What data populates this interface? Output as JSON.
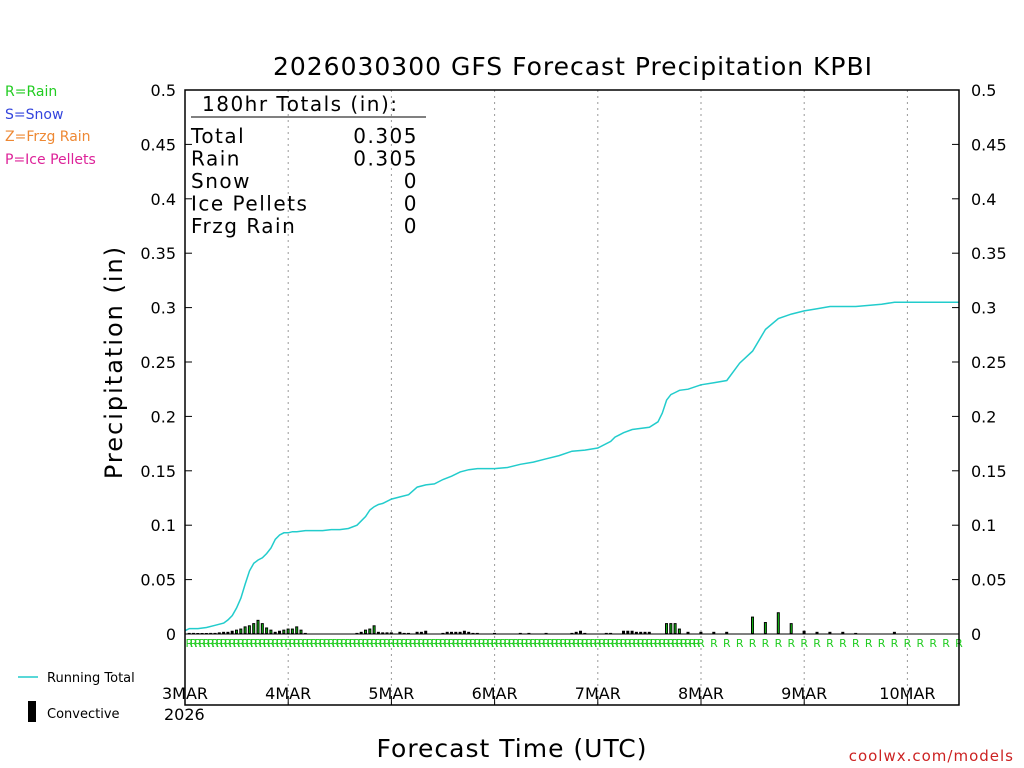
{
  "chart_data": {
    "type": "line",
    "title": "2026030300 GFS Forecast Precipitation KPBI",
    "xlabel": "Forecast Time (UTC)",
    "ylabel": "Precipitation (in)",
    "xlim": [
      0,
      180
    ],
    "ylim": [
      0,
      0.5
    ],
    "y_ticks": [
      0,
      0.05,
      0.1,
      0.15,
      0.2,
      0.25,
      0.3,
      0.35,
      0.4,
      0.45,
      0.5
    ],
    "y_tick_labels": [
      "0",
      "0.05",
      "0.1",
      "0.15",
      "0.2",
      "0.25",
      "0.3",
      "0.35",
      "0.4",
      "0.45",
      "0.5"
    ],
    "x_ticks": [
      0,
      24,
      48,
      72,
      96,
      120,
      144,
      168
    ],
    "x_tick_labels": [
      "3MAR",
      "4MAR",
      "5MAR",
      "6MAR",
      "7MAR",
      "8MAR",
      "9MAR",
      "10MAR"
    ],
    "x_year_label": "2026",
    "grid": "vertical dotted at day boundaries",
    "type_legend": [
      {
        "label": "R=Rain",
        "color": "#22cc22"
      },
      {
        "label": "S=Snow",
        "color": "#3344dd"
      },
      {
        "label": "Z=Frzg Rain",
        "color": "#ee8833"
      },
      {
        "label": "P=Ice Pellets",
        "color": "#dd2299"
      }
    ],
    "series_legend": [
      {
        "label": "Running Total",
        "color": "#22cccc",
        "kind": "line"
      },
      {
        "label": "Convective",
        "color": "#000000",
        "kind": "bar"
      }
    ],
    "totals_box": {
      "heading": "180hr Totals (in):",
      "rows": [
        {
          "label": "Total",
          "value": "0.305"
        },
        {
          "label": "Rain",
          "value": "0.305"
        },
        {
          "label": "Snow",
          "value": "0"
        },
        {
          "label": "Ice Pellets",
          "value": "0"
        },
        {
          "label": "Frzg Rain",
          "value": "0"
        }
      ]
    },
    "running_total": {
      "name": "Running Total",
      "color": "#22cccc",
      "x": [
        0,
        1,
        3,
        5,
        7,
        9,
        10,
        11,
        12,
        13,
        14,
        15,
        16,
        17,
        18,
        19,
        20,
        21,
        22,
        23,
        24,
        25,
        26,
        28,
        30,
        32,
        34,
        36,
        38,
        40,
        42,
        43,
        44,
        45,
        46,
        48,
        50,
        52,
        54,
        56,
        58,
        60,
        62,
        64,
        66,
        68,
        70,
        72,
        75,
        78,
        81,
        84,
        87,
        90,
        93,
        96,
        99,
        100,
        101,
        102,
        104,
        106,
        108,
        110,
        111,
        112,
        113,
        114,
        115,
        117,
        120,
        123,
        126,
        129,
        132,
        135,
        138,
        141,
        144,
        147,
        150,
        153,
        156,
        159,
        162,
        165,
        168,
        171,
        174,
        177,
        180
      ],
      "values": [
        0.003,
        0.005,
        0.005,
        0.006,
        0.008,
        0.01,
        0.013,
        0.017,
        0.024,
        0.033,
        0.046,
        0.058,
        0.065,
        0.068,
        0.07,
        0.074,
        0.079,
        0.087,
        0.091,
        0.093,
        0.093,
        0.094,
        0.094,
        0.095,
        0.095,
        0.095,
        0.096,
        0.096,
        0.097,
        0.1,
        0.108,
        0.114,
        0.117,
        0.119,
        0.12,
        0.124,
        0.126,
        0.128,
        0.135,
        0.137,
        0.138,
        0.142,
        0.145,
        0.149,
        0.151,
        0.152,
        0.152,
        0.152,
        0.153,
        0.156,
        0.158,
        0.161,
        0.164,
        0.168,
        0.169,
        0.171,
        0.177,
        0.181,
        0.183,
        0.185,
        0.188,
        0.189,
        0.19,
        0.195,
        0.203,
        0.215,
        0.22,
        0.222,
        0.224,
        0.225,
        0.229,
        0.231,
        0.233,
        0.249,
        0.26,
        0.28,
        0.29,
        0.294,
        0.297,
        0.299,
        0.301,
        0.301,
        0.301,
        0.302,
        0.303,
        0.305,
        0.305,
        0.305,
        0.305,
        0.305,
        0.305
      ]
    },
    "convective_bars": {
      "name": "Convective",
      "x": [
        1,
        2,
        3,
        4,
        5,
        6,
        7,
        8,
        9,
        10,
        11,
        12,
        13,
        14,
        15,
        16,
        17,
        18,
        19,
        20,
        21,
        22,
        23,
        24,
        25,
        26,
        27,
        28,
        40,
        41,
        42,
        43,
        44,
        45,
        46,
        47,
        48,
        50,
        51,
        52,
        54,
        55,
        56,
        60,
        61,
        62,
        63,
        64,
        65,
        66,
        67,
        68,
        72,
        78,
        80,
        84,
        90,
        91,
        92,
        93,
        98,
        99,
        102,
        103,
        104,
        105,
        106,
        107,
        108,
        112,
        113,
        114,
        115,
        117,
        120,
        123,
        126,
        132,
        135,
        138,
        141,
        144,
        147,
        150,
        153,
        156,
        165
      ],
      "values": [
        0.001,
        0.001,
        0.0007,
        0.0007,
        0.0007,
        0.001,
        0.001,
        0.0015,
        0.002,
        0.002,
        0.003,
        0.004,
        0.005,
        0.007,
        0.008,
        0.01,
        0.013,
        0.01,
        0.006,
        0.004,
        0.002,
        0.003,
        0.004,
        0.005,
        0.005,
        0.007,
        0.004,
        0.001,
        0.001,
        0.002,
        0.004,
        0.005,
        0.008,
        0.002,
        0.0015,
        0.0015,
        0.0015,
        0.002,
        0.001,
        0.001,
        0.002,
        0.002,
        0.003,
        0.001,
        0.002,
        0.002,
        0.002,
        0.002,
        0.003,
        0.002,
        0.001,
        0.001,
        0.001,
        0.001,
        0.001,
        0.001,
        0.001,
        0.002,
        0.003,
        0.001,
        0.001,
        0.001,
        0.003,
        0.003,
        0.003,
        0.002,
        0.002,
        0.002,
        0.002,
        0.01,
        0.01,
        0.01,
        0.005,
        0.002,
        0.002,
        0.002,
        0.002,
        0.016,
        0.011,
        0.02,
        0.01,
        0.003,
        0.002,
        0.002,
        0.002,
        0.001,
        0.002
      ]
    },
    "precip_type_markers": {
      "label": "R",
      "color": "#22cc22",
      "spacing_hours_first_120h": 1,
      "spacing_hours_after_120h": 3,
      "start_hour": 1,
      "end_hour": 180
    }
  },
  "footer": {
    "credit": "coolwx.com/models"
  }
}
